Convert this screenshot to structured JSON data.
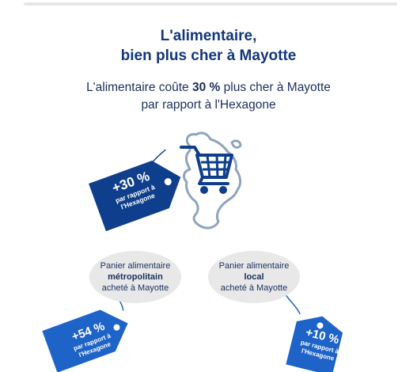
{
  "header": {
    "title_line1": "L'alimentaire,",
    "title_line2": "bien plus cher à Mayotte"
  },
  "intro": {
    "line1_before": "L'alimentaire coûte ",
    "line1_bold": "30 %",
    "line1_after": " plus cher à Mayotte",
    "line2": "par rapport à l'Hexagone"
  },
  "main_tag": {
    "percent": "+30 %",
    "sub_line1": "par rapport à",
    "sub_line2": "l'Hexagone"
  },
  "bubbles": [
    {
      "line1": "Panier alimentaire",
      "line2": "métropolitain",
      "line3": "acheté à Mayotte"
    },
    {
      "line1": "Panier alimentaire",
      "line2": "local",
      "line3": "acheté à Mayotte"
    }
  ],
  "tags": [
    {
      "percent": "+54 %",
      "sub_line1": "par rapport à",
      "sub_line2": "l'Hexagone"
    },
    {
      "percent": "+10 %",
      "sub_line1": "par rapport à",
      "sub_line2": "l'Hexagone"
    }
  ],
  "colors": {
    "dark_blue": "#0f3f8c",
    "mid_blue": "#1e63c8",
    "map_outline": "#8ea4bd",
    "bubble_bg": "#e8e8e8",
    "title": "#13367a"
  },
  "icons": {
    "cart": "shopping-cart-icon",
    "map": "mayotte-map-icon",
    "tag": "price-tag-icon"
  }
}
